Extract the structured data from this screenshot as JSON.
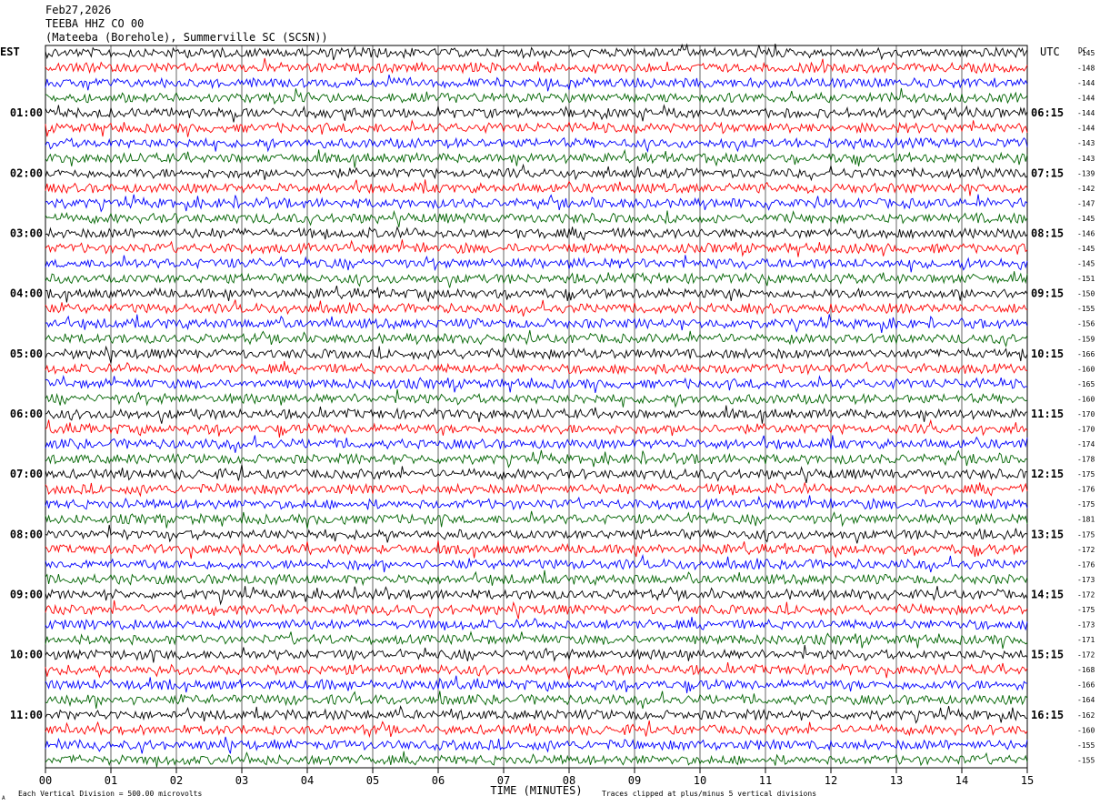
{
  "header": {
    "date": "Feb27,2026",
    "station": "TEEBA HHZ CO 00",
    "location": "(Mateeba (Borehole), Summerville SC (SCSN))"
  },
  "labels": {
    "left_tz": "EST",
    "right_tz": "UTC",
    "dc_label": "DC",
    "xlabel": "TIME (MINUTES)",
    "scale_note": "Each Vertical Division =  500.00 microvolts",
    "clip_note": "Traces clipped at plus/minus 5 vertical divisions",
    "corner_mark": "A"
  },
  "chart_data": {
    "type": "line",
    "trace_count": 48,
    "trace_colors": [
      "#000000",
      "#ff0000",
      "#0000ff",
      "#006400"
    ],
    "minutes_per_trace": 15,
    "xlim": [
      0,
      15
    ],
    "x_ticks": [
      "00",
      "01",
      "02",
      "03",
      "04",
      "05",
      "06",
      "07",
      "08",
      "09",
      "10",
      "11",
      "12",
      "13",
      "14",
      "15"
    ],
    "est_hours": [
      "01:00",
      "02:00",
      "03:00",
      "04:00",
      "05:00",
      "06:00",
      "07:00",
      "08:00",
      "09:00",
      "10:00",
      "11:00"
    ],
    "utc_hours": [
      "06:15",
      "07:15",
      "08:15",
      "09:15",
      "10:15",
      "11:15",
      "12:15",
      "13:15",
      "14:15",
      "15:15",
      "16:15"
    ],
    "dc_offsets": [
      -145,
      -148,
      -144,
      -144,
      -144,
      -144,
      -143,
      -143,
      -139,
      -142,
      -147,
      -145,
      -146,
      -145,
      -145,
      -151,
      -150,
      -155,
      -156,
      -159,
      -166,
      -160,
      -165,
      -160,
      -170,
      -170,
      -174,
      -178,
      -175,
      -176,
      -175,
      -181,
      -175,
      -172,
      -176,
      -173,
      -172,
      -175,
      -173,
      -171,
      -172,
      -168,
      -166,
      -164,
      -162,
      -160,
      -155,
      -155
    ],
    "grid": true
  }
}
